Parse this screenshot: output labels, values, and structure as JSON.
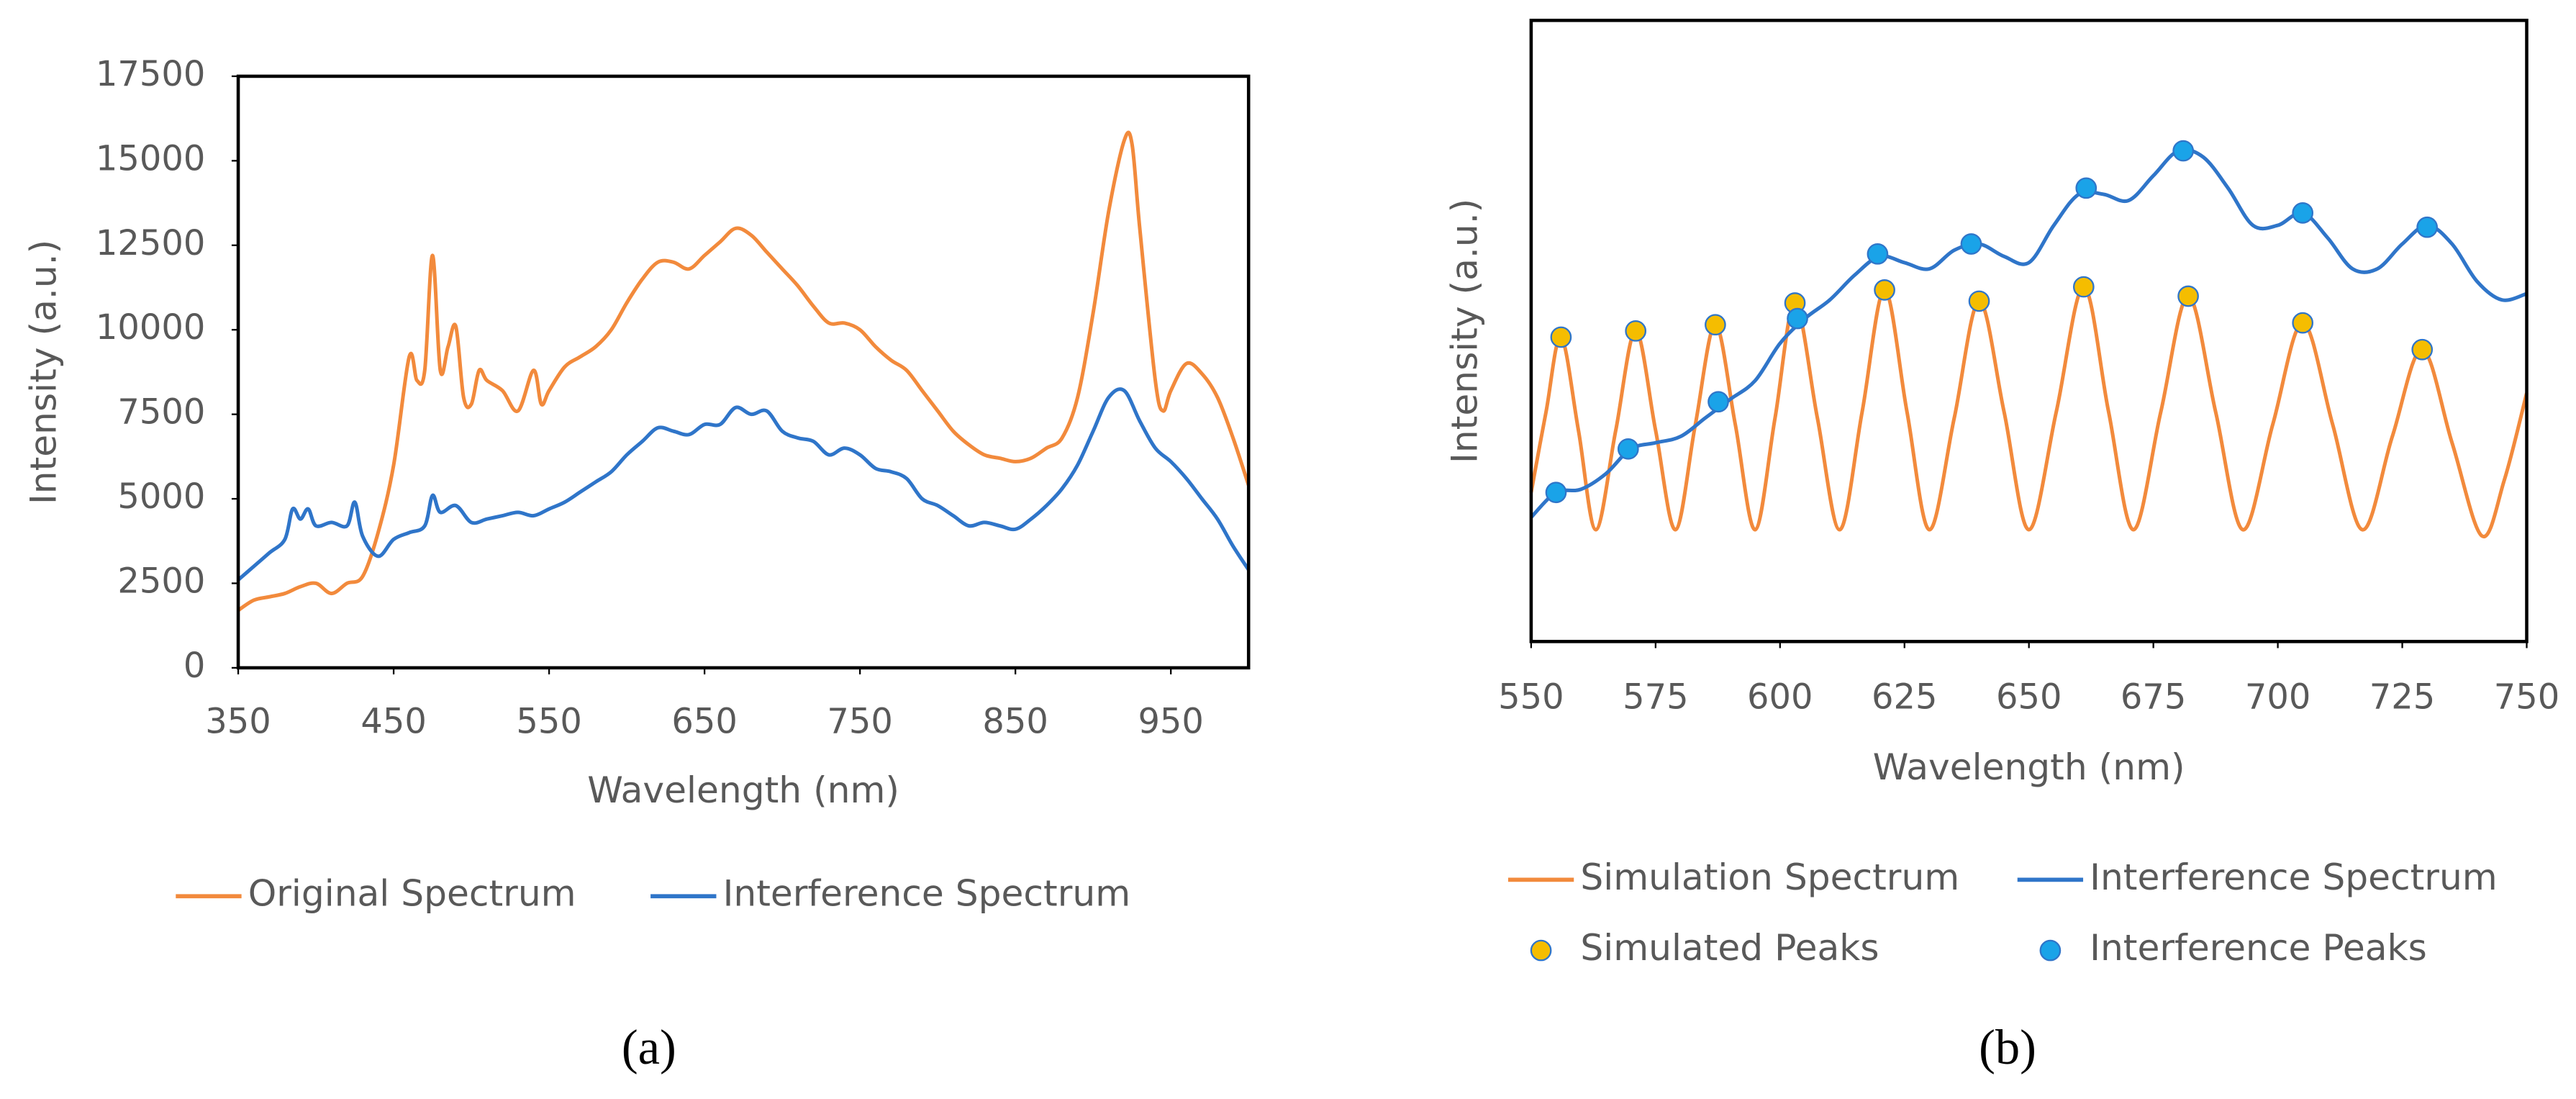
{
  "chart_data": [
    {
      "type": "line",
      "caption": "(a)",
      "xlabel": "Wavelength (nm)",
      "ylabel": "Intensity (a.u.)",
      "xlim": [
        350,
        1000
      ],
      "ylim": [
        0,
        17500
      ],
      "xticks": [
        350,
        450,
        550,
        650,
        750,
        850,
        950
      ],
      "yticks": [
        0,
        2500,
        5000,
        7500,
        10000,
        12500,
        15000,
        17500
      ],
      "series": [
        {
          "name": "Original Spectrum",
          "color": "#f28a3c",
          "x": [
            350,
            360,
            370,
            380,
            390,
            400,
            410,
            420,
            430,
            440,
            450,
            460,
            465,
            470,
            475,
            480,
            485,
            490,
            495,
            500,
            505,
            510,
            520,
            530,
            540,
            545,
            550,
            560,
            570,
            580,
            590,
            600,
            610,
            620,
            630,
            640,
            650,
            660,
            670,
            680,
            690,
            700,
            710,
            720,
            730,
            740,
            750,
            760,
            770,
            780,
            790,
            800,
            810,
            820,
            830,
            840,
            850,
            860,
            870,
            880,
            890,
            900,
            910,
            920,
            925,
            930,
            940,
            945,
            950,
            960,
            970,
            980,
            990,
            1000
          ],
          "values": [
            1700,
            2000,
            2100,
            2200,
            2400,
            2500,
            2200,
            2500,
            2700,
            4000,
            6000,
            9200,
            8500,
            8800,
            12200,
            8800,
            9500,
            10100,
            8000,
            7800,
            8800,
            8500,
            8200,
            7600,
            8800,
            7800,
            8200,
            8900,
            9200,
            9500,
            10000,
            10800,
            11500,
            12000,
            12000,
            11800,
            12200,
            12600,
            13000,
            12800,
            12300,
            11800,
            11300,
            10700,
            10200,
            10200,
            10000,
            9500,
            9100,
            8800,
            8200,
            7600,
            7000,
            6600,
            6300,
            6200,
            6100,
            6200,
            6500,
            6800,
            8000,
            10500,
            13500,
            15600,
            15500,
            13000,
            8500,
            7600,
            8200,
            9000,
            8700,
            8000,
            6800,
            5400
          ]
        },
        {
          "name": "Interference Spectrum",
          "color": "#2f75c9",
          "x": [
            350,
            360,
            370,
            380,
            385,
            390,
            395,
            400,
            410,
            420,
            425,
            430,
            440,
            450,
            460,
            470,
            475,
            480,
            490,
            500,
            510,
            520,
            530,
            540,
            550,
            560,
            570,
            580,
            590,
            600,
            610,
            620,
            630,
            640,
            650,
            660,
            670,
            680,
            690,
            700,
            710,
            720,
            730,
            740,
            750,
            760,
            770,
            780,
            790,
            800,
            810,
            820,
            830,
            840,
            850,
            860,
            870,
            880,
            890,
            900,
            910,
            920,
            930,
            940,
            950,
            960,
            970,
            980,
            990,
            1000
          ],
          "values": [
            2600,
            3000,
            3400,
            3800,
            4700,
            4400,
            4700,
            4200,
            4300,
            4200,
            4900,
            3900,
            3300,
            3800,
            4000,
            4200,
            5100,
            4600,
            4800,
            4300,
            4400,
            4500,
            4600,
            4500,
            4700,
            4900,
            5200,
            5500,
            5800,
            6300,
            6700,
            7100,
            7000,
            6900,
            7200,
            7200,
            7700,
            7500,
            7600,
            7000,
            6800,
            6700,
            6300,
            6500,
            6300,
            5900,
            5800,
            5600,
            5000,
            4800,
            4500,
            4200,
            4300,
            4200,
            4100,
            4400,
            4800,
            5300,
            6000,
            7000,
            8000,
            8200,
            7300,
            6500,
            6100,
            5600,
            5000,
            4400,
            3600,
            2900
          ]
        }
      ]
    },
    {
      "type": "line",
      "caption": "(b)",
      "xlabel": "Wavelength (nm)",
      "ylabel": "Intensity (a.u.)",
      "xlim": [
        550,
        750
      ],
      "ylim": [
        0,
        1
      ],
      "xticks": [
        550,
        575,
        600,
        625,
        650,
        675,
        700,
        725,
        750
      ],
      "series": [
        {
          "name": "Simulation Spectrum",
          "color": "#f28a3c",
          "style": "line",
          "x": [
            550,
            553,
            556,
            559.5,
            563,
            567,
            571,
            575,
            579,
            583,
            587,
            591,
            595,
            599,
            603,
            607.5,
            612,
            616.5,
            621,
            625.5,
            630,
            635,
            640,
            645,
            650,
            655.5,
            661,
            666,
            671,
            676.5,
            682,
            687.5,
            693,
            699,
            705,
            711,
            717,
            723,
            729,
            735,
            741,
            745.5,
            750
          ],
          "values": [
            0.24,
            0.37,
            0.49,
            0.34,
            0.18,
            0.34,
            0.5,
            0.34,
            0.18,
            0.35,
            0.51,
            0.35,
            0.18,
            0.36,
            0.545,
            0.36,
            0.18,
            0.37,
            0.566,
            0.37,
            0.18,
            0.36,
            0.548,
            0.37,
            0.18,
            0.37,
            0.571,
            0.37,
            0.18,
            0.37,
            0.556,
            0.37,
            0.18,
            0.35,
            0.513,
            0.35,
            0.18,
            0.33,
            0.47,
            0.32,
            0.17,
            0.26,
            0.4
          ]
        },
        {
          "name": "Interference Spectrum",
          "color": "#2f75c9",
          "style": "line",
          "x": [
            550,
            555,
            560,
            565,
            570,
            575,
            580,
            585,
            590,
            595,
            600,
            605,
            610,
            615,
            620,
            625,
            630,
            635,
            640,
            645,
            650,
            655,
            660,
            665,
            670,
            675,
            680,
            685,
            690,
            695,
            700,
            705,
            710,
            715,
            720,
            725,
            730,
            735,
            740,
            745,
            750
          ],
          "values": [
            0.2,
            0.24,
            0.245,
            0.27,
            0.31,
            0.32,
            0.33,
            0.36,
            0.39,
            0.42,
            0.48,
            0.52,
            0.55,
            0.59,
            0.62,
            0.61,
            0.6,
            0.63,
            0.64,
            0.62,
            0.61,
            0.67,
            0.72,
            0.72,
            0.71,
            0.75,
            0.79,
            0.78,
            0.73,
            0.67,
            0.67,
            0.69,
            0.65,
            0.6,
            0.6,
            0.64,
            0.67,
            0.64,
            0.58,
            0.55,
            0.56
          ]
        },
        {
          "name": "Simulated Peaks",
          "color": "#f5bd00",
          "edgecolor": "#2f75c9",
          "style": "markers",
          "x": [
            556,
            571,
            587,
            603,
            621,
            640,
            661,
            682,
            705,
            729
          ],
          "values": [
            0.49,
            0.5,
            0.51,
            0.545,
            0.566,
            0.548,
            0.571,
            0.556,
            0.513,
            0.47
          ]
        },
        {
          "name": "Interference Peaks",
          "color": "#1aa3e8",
          "edgecolor": "#2f75c9",
          "style": "markers",
          "x": [
            555,
            569.5,
            587.6,
            603.5,
            619.6,
            638.4,
            661.5,
            681,
            705,
            730
          ],
          "values": [
            0.24,
            0.31,
            0.386,
            0.52,
            0.624,
            0.64,
            0.73,
            0.79,
            0.69,
            0.667
          ]
        }
      ]
    }
  ]
}
